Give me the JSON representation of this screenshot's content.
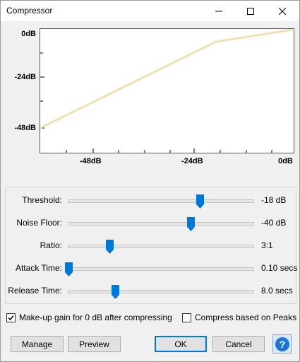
{
  "window": {
    "title": "Compressor"
  },
  "graph": {
    "y_labels": [
      "0dB",
      "-24dB",
      "-48dB"
    ],
    "x_labels": [
      "-48dB",
      "-24dB",
      "0dB"
    ],
    "curve_color": "#f5deb3"
  },
  "controls": [
    {
      "label": "Threshold:",
      "value": "-18 dB",
      "fraction": 0.71
    },
    {
      "label": "Noise Floor:",
      "value": "-40 dB",
      "fraction": 0.66
    },
    {
      "label": "Ratio:",
      "value": "3:1",
      "fraction": 0.22
    },
    {
      "label": "Attack Time:",
      "value": "0.10 secs",
      "fraction": 0.0
    },
    {
      "label": "Release Time:",
      "value": "8.0 secs",
      "fraction": 0.25
    }
  ],
  "options": {
    "makeup_gain_label": "Make-up gain for 0 dB after compressing",
    "makeup_gain_checked": true,
    "peaks_label": "Compress based on Peaks",
    "peaks_checked": false
  },
  "buttons": {
    "manage": "Manage",
    "preview": "Preview",
    "ok": "OK",
    "cancel": "Cancel",
    "help_icon": "question-icon"
  },
  "colors": {
    "accent": "#0078d7",
    "curve": "#f5deb3"
  }
}
